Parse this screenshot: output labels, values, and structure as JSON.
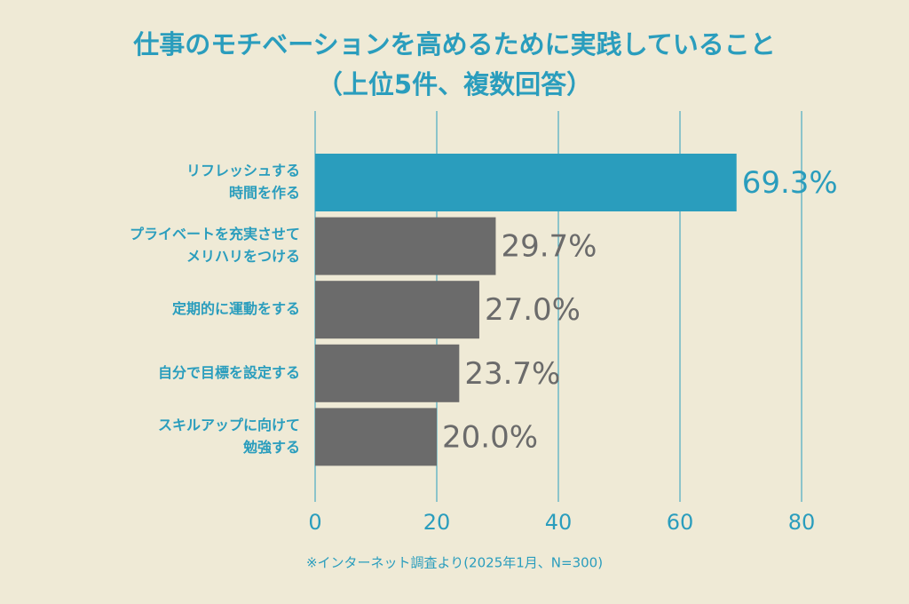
{
  "chart_data": {
    "type": "barh",
    "title": "仕事のモチベーションを高めるために実践していること",
    "subtitle": "（上位5件、複数回答）",
    "categories": [
      [
        "リフレッシュする",
        "時間を作る"
      ],
      [
        "プライベートを充実させて",
        "メリハリをつける"
      ],
      [
        "定期的に運動をする"
      ],
      [
        "自分で目標を設定する"
      ],
      [
        "スキルアップに向けて",
        "勉強する"
      ]
    ],
    "values": [
      69.3,
      29.7,
      27.0,
      23.7,
      20.0
    ],
    "value_labels": [
      "69.3%",
      "29.7%",
      "27.0%",
      "23.7%",
      "20.0%"
    ],
    "colors": [
      "#2a9dbd",
      "#6b6b6b",
      "#6b6b6b",
      "#6b6b6b",
      "#6b6b6b"
    ],
    "xlim": [
      0,
      80
    ],
    "xticks": [
      0,
      20,
      40,
      60,
      80
    ],
    "grid": true,
    "note": "※インターネット調査より(2025年1月、N=300)"
  }
}
